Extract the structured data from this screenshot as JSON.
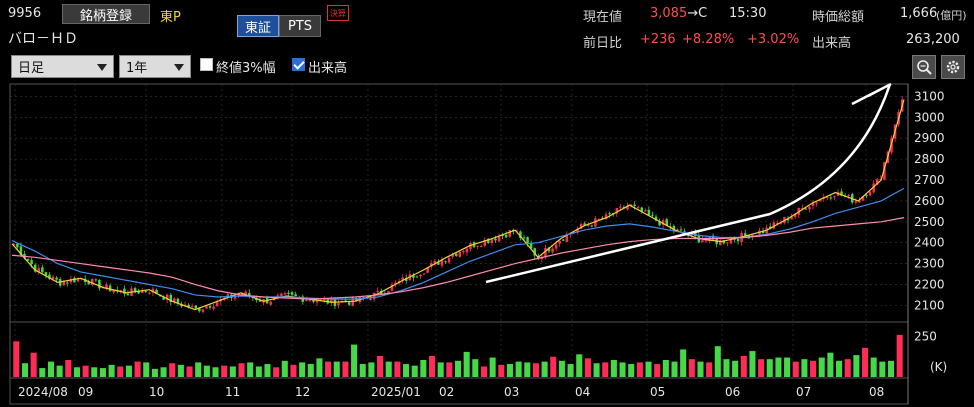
{
  "stock": {
    "code": "9956",
    "name": "バロ－ＨＤ",
    "register_label": "銘柄登録",
    "market": "東P",
    "exchange_tabs": [
      "東証",
      "PTS"
    ],
    "badge": "決算"
  },
  "quote": {
    "price_label": "現在値",
    "price": "3,085",
    "price_suffix": "→C",
    "time": "15:30",
    "mcap_label": "時価総額",
    "mcap_value": "1,666",
    "mcap_unit": "(億円)",
    "change_label": "前日比",
    "change": "+236",
    "change_pct": "+8.28%",
    "change_pct2": "+3.02%",
    "volume_label": "出来高",
    "volume": "263,200"
  },
  "controls": {
    "period": "日足",
    "range": "1年",
    "opt_3pct": "終値3%幅",
    "opt_3pct_checked": false,
    "opt_volume": "出来高",
    "opt_volume_checked": true,
    "zoom_icon": "magnifier-icon",
    "settings_icon": "gear-icon"
  },
  "colors": {
    "up": "#ff2d55",
    "down": "#46d846",
    "ma_short": "#f2d23a",
    "ma_mid": "#3d8cf0",
    "ma_long": "#ff8ab3",
    "annotation": "#ffffff",
    "grid": "#3a3a3a"
  },
  "chart_data": [
    {
      "type": "line",
      "title": "",
      "y_ticks": [
        2100,
        2200,
        2300,
        2400,
        2500,
        2600,
        2700,
        2800,
        2900,
        3000,
        3100
      ],
      "ylim": [
        2030,
        3150
      ],
      "x_labels": [
        "2024/08",
        "09",
        "10",
        "11",
        "12",
        "2025/01",
        "02",
        "03",
        "04",
        "05",
        "06",
        "07",
        "08"
      ],
      "series": [
        {
          "values": [
            2395,
            2270,
            2210,
            2230,
            2185,
            2160,
            2175,
            2120,
            2080,
            2120,
            2160,
            2120,
            2145,
            2130,
            2115,
            2120,
            2155,
            2215,
            2270,
            2330,
            2385,
            2420,
            2460,
            2330,
            2420,
            2480,
            2520,
            2580,
            2520,
            2460,
            2420,
            2405,
            2430,
            2460,
            2520,
            2590,
            2640,
            2600,
            2700,
            3085
          ]
        },
        {
          "values": [
            2410,
            2360,
            2300,
            2260,
            2240,
            2220,
            2200,
            2180,
            2150,
            2140,
            2145,
            2140,
            2140,
            2135,
            2130,
            2130,
            2140,
            2170,
            2210,
            2260,
            2310,
            2350,
            2390,
            2400,
            2430,
            2460,
            2480,
            2490,
            2475,
            2455,
            2435,
            2425,
            2425,
            2440,
            2465,
            2500,
            2540,
            2570,
            2600,
            2660
          ]
        },
        {
          "values": [
            2340,
            2330,
            2315,
            2300,
            2285,
            2270,
            2255,
            2235,
            2200,
            2170,
            2150,
            2140,
            2135,
            2130,
            2135,
            2140,
            2150,
            2165,
            2185,
            2210,
            2240,
            2270,
            2300,
            2325,
            2350,
            2370,
            2390,
            2405,
            2415,
            2420,
            2420,
            2420,
            2425,
            2435,
            2450,
            2470,
            2480,
            2490,
            2500,
            2520
          ]
        }
      ]
    },
    {
      "type": "bar",
      "y_ticks": [
        250
      ],
      "y_unit": "(K)",
      "ylim": [
        0,
        290
      ],
      "volume_values": [
        220,
        85,
        150,
        55,
        95,
        70,
        105,
        60,
        70,
        60,
        55,
        75,
        65,
        70,
        95,
        90,
        50,
        60,
        85,
        75,
        65,
        90,
        70,
        60,
        70,
        65,
        85,
        90,
        65,
        80,
        60,
        100,
        75,
        90,
        80,
        115,
        95,
        95,
        95,
        200,
        80,
        90,
        130,
        95,
        95,
        80,
        70,
        105,
        130,
        90,
        90,
        100,
        155,
        110,
        65,
        120,
        75,
        80,
        95,
        90,
        85,
        95,
        125,
        100,
        80,
        140,
        115,
        85,
        90,
        105,
        90,
        80,
        90,
        95,
        80,
        105,
        95,
        170,
        110,
        95,
        90,
        190,
        110,
        100,
        130,
        160,
        110,
        110,
        120,
        120,
        95,
        110,
        100,
        120,
        150,
        100,
        110,
        135,
        180,
        120,
        95,
        100,
        260
      ]
    }
  ]
}
